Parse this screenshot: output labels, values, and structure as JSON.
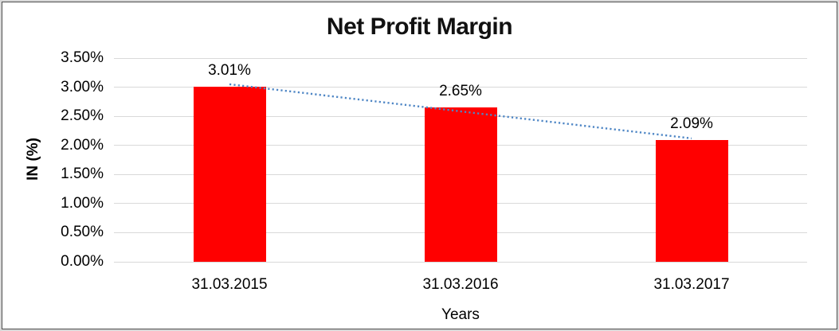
{
  "chart_data": {
    "type": "bar",
    "title": "Net Profit Margin",
    "xlabel": "Years",
    "ylabel": "IN (%)",
    "categories": [
      "31.03.2015",
      "31.03.2016",
      "31.03.2017"
    ],
    "values": [
      3.01,
      2.65,
      2.09
    ],
    "data_labels": [
      "3.01%",
      "2.65%",
      "2.09%"
    ],
    "ylim": [
      0,
      3.5
    ],
    "ytick_step": 0.5,
    "ytick_labels": [
      "0.00%",
      "0.50%",
      "1.00%",
      "1.50%",
      "2.00%",
      "2.50%",
      "3.00%",
      "3.50%"
    ],
    "grid": true,
    "legend": "none",
    "bar_color": "#FF0000",
    "gridline_color": "#D9D9D9",
    "text_color": "#000000",
    "trendline": {
      "type": "linear",
      "style": "dotted",
      "color": "#4E86C5",
      "start_value": 3.05,
      "end_value": 2.12
    }
  }
}
